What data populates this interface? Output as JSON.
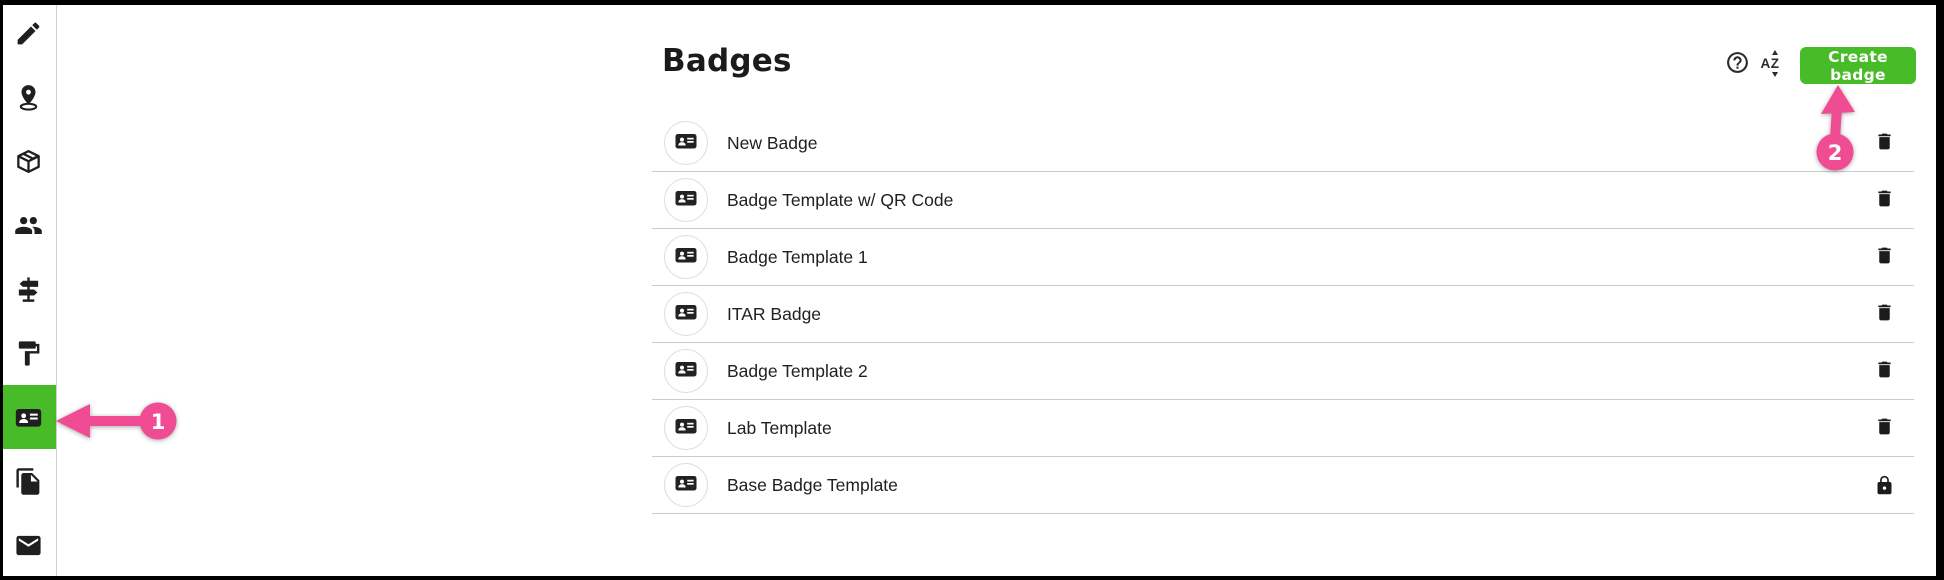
{
  "header": {
    "title": "Badges",
    "sort_label": "AZ",
    "create_button_label": "Create badge"
  },
  "sidebar": {
    "active_item": "badges",
    "items": [
      {
        "id": "edit",
        "icon": "pen-icon",
        "active": false
      },
      {
        "id": "locations",
        "icon": "location-pin-icon",
        "active": false
      },
      {
        "id": "inventory",
        "icon": "package-icon",
        "active": false
      },
      {
        "id": "members",
        "icon": "people-icon",
        "active": false
      },
      {
        "id": "wayfinding",
        "icon": "signpost-icon",
        "active": false
      },
      {
        "id": "paint",
        "icon": "paint-roller-icon",
        "active": false
      },
      {
        "id": "badges",
        "icon": "id-card-icon",
        "active": true
      },
      {
        "id": "documents",
        "icon": "copy-icon",
        "active": false
      },
      {
        "id": "messages",
        "icon": "mail-icon",
        "active": false
      }
    ]
  },
  "badge_list": {
    "rows": [
      {
        "label": "New Badge",
        "leading_icon": "id-card-icon",
        "trailing_icon": "trash-icon"
      },
      {
        "label": "Badge Template w/ QR Code",
        "leading_icon": "id-card-icon",
        "trailing_icon": "trash-icon"
      },
      {
        "label": "Badge Template 1",
        "leading_icon": "id-card-icon",
        "trailing_icon": "trash-icon"
      },
      {
        "label": "ITAR Badge",
        "leading_icon": "id-card-icon",
        "trailing_icon": "trash-icon"
      },
      {
        "label": "Badge Template 2",
        "leading_icon": "id-card-icon",
        "trailing_icon": "trash-icon"
      },
      {
        "label": "Lab Template",
        "leading_icon": "id-card-icon",
        "trailing_icon": "trash-icon"
      },
      {
        "label": "Base Badge Template",
        "leading_icon": "id-card-icon",
        "trailing_icon": "lock-icon"
      }
    ]
  },
  "annotations": [
    {
      "number": "1",
      "points_to": "sidebar-item-badges"
    },
    {
      "number": "2",
      "points_to": "create-badge-button"
    }
  ],
  "colors": {
    "accent_green": "#47BC28",
    "annotation_pink": "#F04C93",
    "icon_black": "#1F1F1F",
    "divider_gray": "#CBCBCB"
  }
}
